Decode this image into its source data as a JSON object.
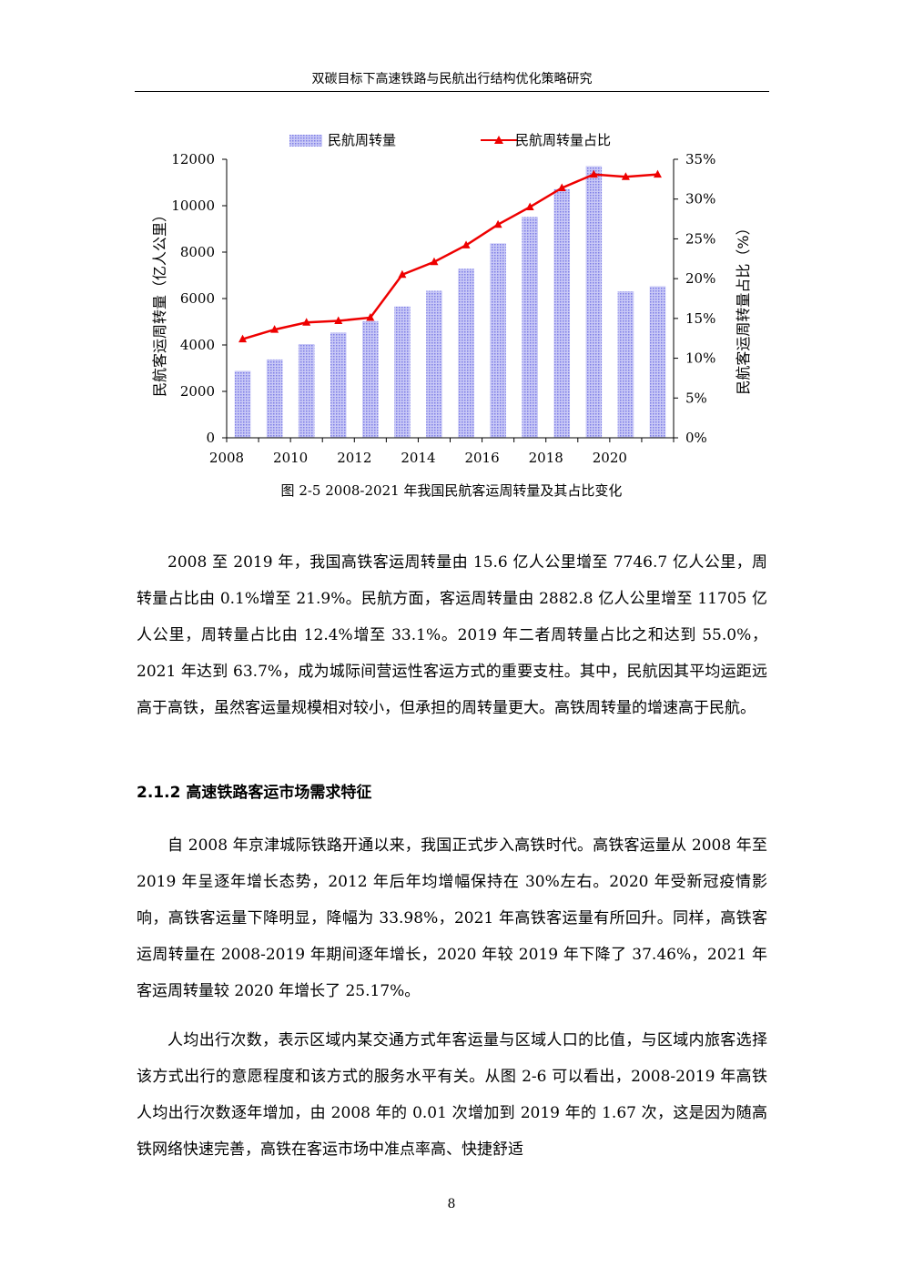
{
  "header": {
    "title": "双碳目标下高速铁路与民航出行结构优化策略研究"
  },
  "chart_data": {
    "type": "bar+line",
    "categories": [
      "2008",
      "2009",
      "2010",
      "2011",
      "2012",
      "2013",
      "2014",
      "2015",
      "2016",
      "2017",
      "2018",
      "2019",
      "2020",
      "2021"
    ],
    "x_tick_labels": [
      "2008",
      "2010",
      "2012",
      "2014",
      "2016",
      "2018",
      "2020"
    ],
    "series": [
      {
        "name": "民航周转量",
        "type": "bar",
        "axis": "left",
        "values": [
          2883,
          3375,
          4039,
          4537,
          5026,
          5657,
          6334,
          7283,
          8378,
          9513,
          10712,
          11705,
          6311,
          6529
        ]
      },
      {
        "name": "民航周转量占比",
        "type": "line",
        "axis": "right",
        "values": [
          12.4,
          13.6,
          14.5,
          14.7,
          15.1,
          20.5,
          22.1,
          24.2,
          26.8,
          29.0,
          31.4,
          33.1,
          32.8,
          33.1
        ]
      }
    ],
    "ylabel_left": "民航客运周转量（亿人公里）",
    "ylabel_right": "民航客运周转量占比（%）",
    "ylim_left": [
      0,
      12000
    ],
    "ylim_right": [
      0,
      35
    ],
    "yticks_left": [
      "0",
      "2000",
      "4000",
      "6000",
      "8000",
      "10000",
      "12000"
    ],
    "yticks_right": [
      "0%",
      "5%",
      "10%",
      "15%",
      "20%",
      "25%",
      "30%",
      "35%"
    ],
    "legend_position": "top",
    "colors": {
      "bar": "#9999ee",
      "line": "#ee0000"
    }
  },
  "caption": "图 2-5 2008-2021 年我国民航客运周转量及其占比变化",
  "paragraphs": {
    "p1": "2008 至 2019 年，我国高铁客运周转量由 15.6 亿人公里增至 7746.7 亿人公里，周转量占比由 0.1%增至 21.9%。民航方面，客运周转量由 2882.8 亿人公里增至 11705 亿人公里，周转量占比由 12.4%增至 33.1%。2019 年二者周转量占比之和达到 55.0%，2021 年达到 63.7%，成为城际间营运性客运方式的重要支柱。其中，民航因其平均运距远高于高铁，虽然客运量规模相对较小，但承担的周转量更大。高铁周转量的增速高于民航。",
    "p2": "自 2008 年京津城际铁路开通以来，我国正式步入高铁时代。高铁客运量从 2008 年至 2019 年呈逐年增长态势，2012 年后年均增幅保持在 30%左右。2020 年受新冠疫情影响，高铁客运量下降明显，降幅为 33.98%，2021 年高铁客运量有所回升。同样，高铁客运周转量在 2008-2019 年期间逐年增长，2020 年较 2019 年下降了 37.46%，2021 年客运周转量较 2020 年增长了 25.17%。",
    "p3": "人均出行次数，表示区域内某交通方式年客运量与区域人口的比值，与区域内旅客选择该方式出行的意愿程度和该方式的服务水平有关。从图 2-6 可以看出，2008-2019 年高铁人均出行次数逐年增加，由 2008 年的 0.01 次增加到 2019 年的 1.67 次，这是因为随高铁网络快速完善，高铁在客运市场中准点率高、快捷舒适"
  },
  "section": {
    "heading": "2.1.2 高速铁路客运市场需求特征"
  },
  "page_number": "8"
}
